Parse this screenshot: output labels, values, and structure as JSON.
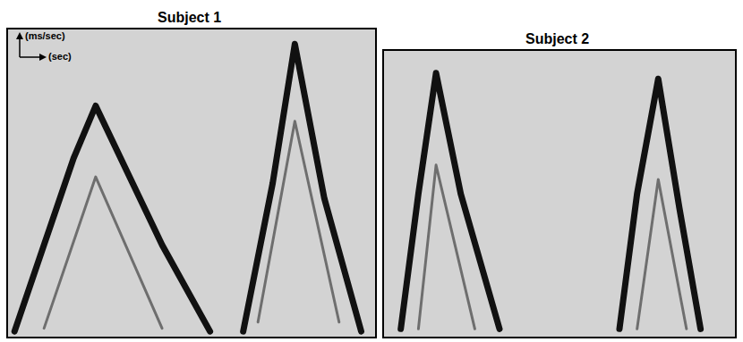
{
  "chart_data": [
    {
      "type": "line",
      "title": "Subject 1",
      "xlabel": "(sec)",
      "ylabel": "(ms/sec)",
      "xlim": [
        0,
        100
      ],
      "ylim": [
        0,
        100
      ],
      "tick_labels": false,
      "grid": false,
      "series": [
        {
          "color": "#111111",
          "x": [
            2,
            10,
            18,
            24,
            32,
            42,
            55,
            58,
            64,
            72,
            78,
            86,
            96
          ],
          "values": [
            2,
            30,
            58,
            75,
            55,
            30,
            2,
            null,
            2,
            50,
            95,
            45,
            2
          ]
        },
        {
          "color": "#6e6e6e",
          "x": [
            10,
            24,
            42,
            50,
            68,
            78,
            90
          ],
          "values": [
            3,
            52,
            3,
            null,
            5,
            70,
            5
          ]
        }
      ]
    },
    {
      "type": "line",
      "title": "Subject 2",
      "xlim": [
        0,
        100
      ],
      "ylim": [
        0,
        100
      ],
      "tick_labels": false,
      "grid": false,
      "series": [
        {
          "color": "#111111",
          "x": [
            5,
            10,
            15,
            22,
            33,
            50,
            67,
            72,
            78,
            84,
            90
          ],
          "values": [
            3,
            50,
            92,
            50,
            3,
            null,
            3,
            50,
            90,
            45,
            3
          ]
        },
        {
          "color": "#6e6e6e",
          "x": [
            10,
            15,
            26,
            50,
            72,
            78,
            86
          ],
          "values": [
            3,
            60,
            3,
            null,
            3,
            55,
            3
          ]
        }
      ]
    }
  ]
}
